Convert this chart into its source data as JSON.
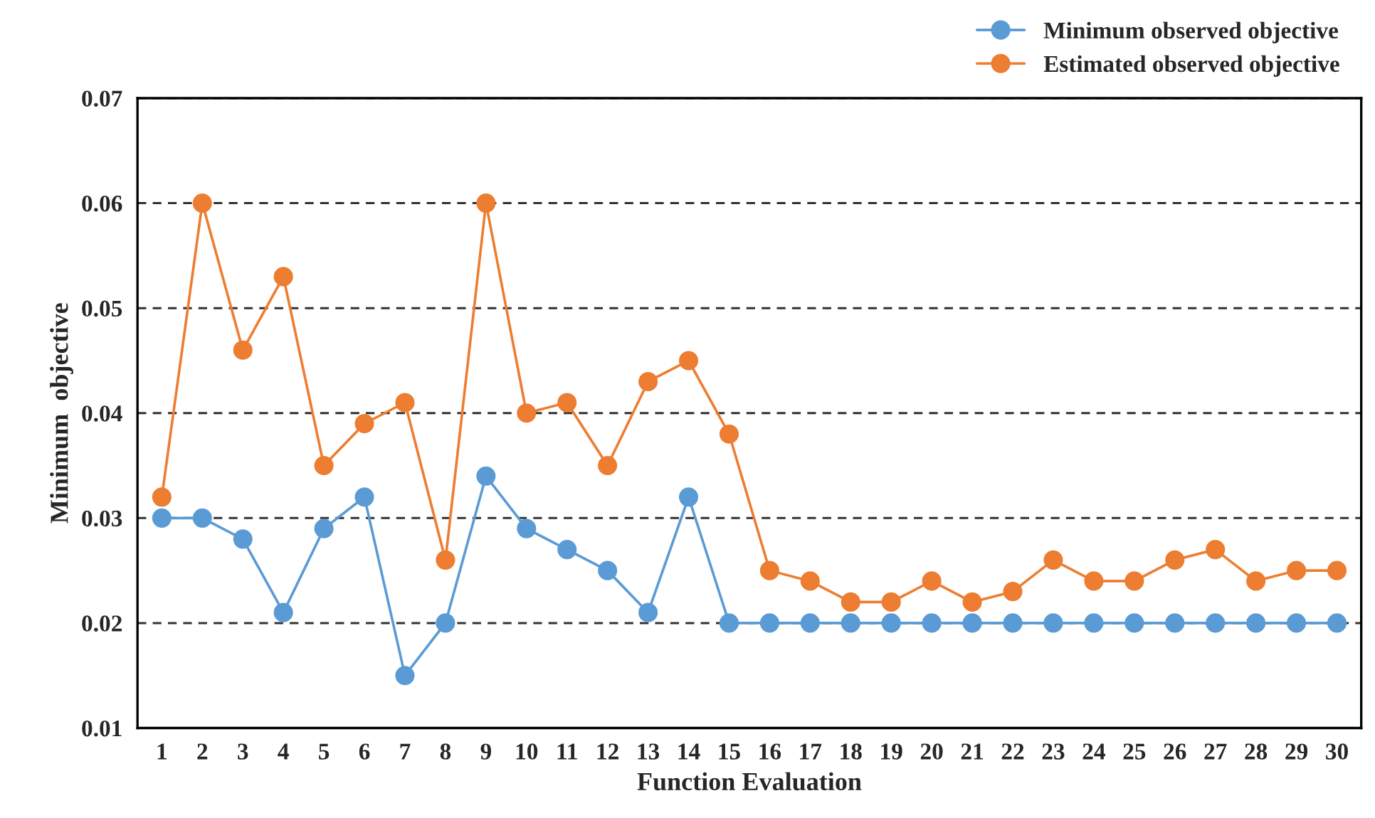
{
  "chart_data": {
    "type": "line",
    "xlabel": "Function Evaluation",
    "ylabel": "Minimum  objective",
    "categories": [
      "1",
      "2",
      "3",
      "4",
      "5",
      "6",
      "7",
      "8",
      "9",
      "10",
      "11",
      "12",
      "13",
      "14",
      "15",
      "16",
      "17",
      "18",
      "19",
      "20",
      "21",
      "22",
      "23",
      "24",
      "25",
      "26",
      "27",
      "28",
      "29",
      "30"
    ],
    "series": [
      {
        "name": "Minimum observed objective",
        "color": "#5b9bd5",
        "values": [
          0.03,
          0.03,
          0.028,
          0.021,
          0.029,
          0.032,
          0.015,
          0.02,
          0.034,
          0.029,
          0.027,
          0.025,
          0.021,
          0.032,
          0.02,
          0.02,
          0.02,
          0.02,
          0.02,
          0.02,
          0.02,
          0.02,
          0.02,
          0.02,
          0.02,
          0.02,
          0.02,
          0.02,
          0.02,
          0.02
        ]
      },
      {
        "name": "Estimated observed objective",
        "color": "#ed7d31",
        "values": [
          0.032,
          0.06,
          0.046,
          0.053,
          0.035,
          0.039,
          0.041,
          0.026,
          0.06,
          0.04,
          0.041,
          0.035,
          0.043,
          0.045,
          0.038,
          0.025,
          0.024,
          0.022,
          0.022,
          0.024,
          0.022,
          0.023,
          0.026,
          0.024,
          0.024,
          0.026,
          0.027,
          0.024,
          0.025,
          0.025
        ]
      }
    ],
    "ylim": [
      0.01,
      0.07
    ],
    "yticks": [
      {
        "value": 0.01,
        "label": "0.01"
      },
      {
        "value": 0.02,
        "label": "0.02"
      },
      {
        "value": 0.03,
        "label": "0.03"
      },
      {
        "value": 0.04,
        "label": "0.04"
      },
      {
        "value": 0.05,
        "label": "0.05"
      },
      {
        "value": 0.06,
        "label": "0.06"
      },
      {
        "value": 0.07,
        "label": "0.07"
      }
    ],
    "grid": "y",
    "legend": "top right",
    "marker": "circle",
    "line_style": "solid"
  }
}
